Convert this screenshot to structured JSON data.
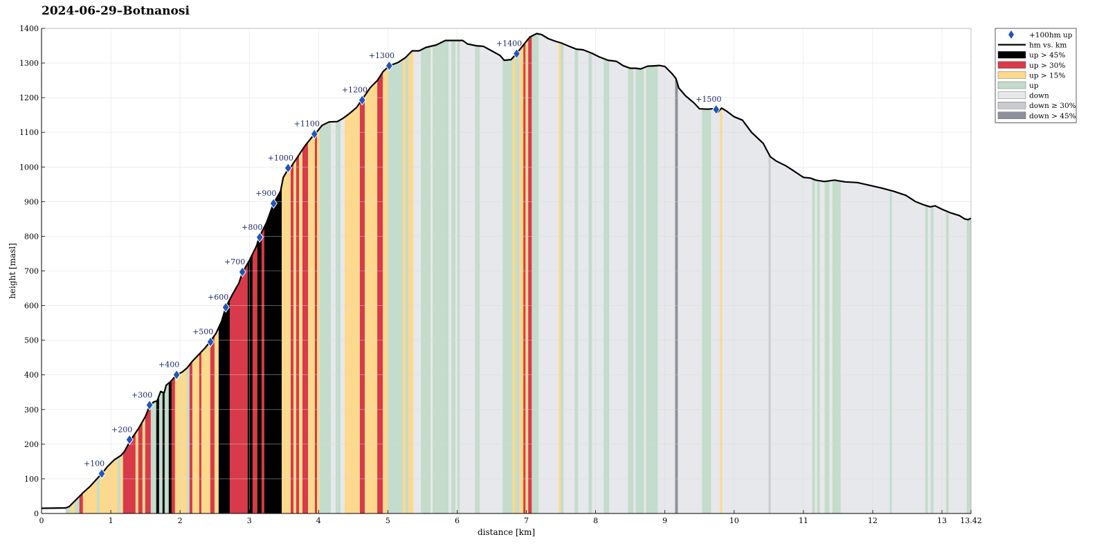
{
  "title": "2024-06-29–Botnanosi",
  "chart_data": {
    "type": "area",
    "title": "2024-06-29–Botnanosi",
    "xlabel": "distance [km]",
    "ylabel": "height [masl]",
    "xlim": [
      0,
      13.42
    ],
    "ylim": [
      0,
      1400
    ],
    "x_ticks": [
      "0",
      "1",
      "2",
      "3",
      "4",
      "5",
      "6",
      "7",
      "8",
      "9",
      "10",
      "11",
      "12",
      "13",
      "13.42"
    ],
    "y_ticks": [
      "0",
      "100",
      "200",
      "300",
      "400",
      "500",
      "600",
      "700",
      "800",
      "900",
      "1000",
      "1100",
      "1200",
      "1300",
      "1400"
    ],
    "grid": true,
    "legend_position": "outside-right-top",
    "colors": {
      "up_gt_45": "#000000",
      "up_gt_30": "#d73a4a",
      "up_gt_15": "#fcd98c",
      "up": "#c4dccb",
      "down": "#e7e8eb",
      "down_ge_30": "#c9cbd0",
      "down_gt_45": "#8e919c",
      "marker": "#1f56b8",
      "profile_line": "#000000"
    },
    "legend": [
      {
        "key": "marker",
        "label": "+100hm up",
        "kind": "marker"
      },
      {
        "key": "profile_line",
        "label": "hm vs. km",
        "kind": "line"
      },
      {
        "key": "up_gt_45",
        "label": "up > 45%",
        "kind": "box"
      },
      {
        "key": "up_gt_30",
        "label": "up > 30%",
        "kind": "box"
      },
      {
        "key": "up_gt_15",
        "label": "up > 15%",
        "kind": "box"
      },
      {
        "key": "up",
        "label": "up",
        "kind": "box"
      },
      {
        "key": "down",
        "label": "down",
        "kind": "box"
      },
      {
        "key": "down_ge_30",
        "label": "down ≥ 30%",
        "kind": "box"
      },
      {
        "key": "down_gt_45",
        "label": "down > 45%",
        "kind": "box"
      }
    ],
    "profile": [
      [
        0,
        15
      ],
      [
        0.35,
        16
      ],
      [
        0.4,
        20
      ],
      [
        0.5,
        40
      ],
      [
        0.6,
        60
      ],
      [
        0.7,
        78
      ],
      [
        0.8,
        100
      ],
      [
        0.87,
        115
      ],
      [
        0.95,
        135
      ],
      [
        1.05,
        155
      ],
      [
        1.15,
        168
      ],
      [
        1.2,
        180
      ],
      [
        1.28,
        210
      ],
      [
        1.4,
        245
      ],
      [
        1.5,
        280
      ],
      [
        1.56,
        310
      ],
      [
        1.62,
        322
      ],
      [
        1.67,
        325
      ],
      [
        1.72,
        352
      ],
      [
        1.77,
        348
      ],
      [
        1.8,
        370
      ],
      [
        1.86,
        380
      ],
      [
        1.95,
        400
      ],
      [
        2.03,
        408
      ],
      [
        2.1,
        420
      ],
      [
        2.18,
        440
      ],
      [
        2.3,
        465
      ],
      [
        2.37,
        480
      ],
      [
        2.43,
        495
      ],
      [
        2.52,
        520
      ],
      [
        2.6,
        555
      ],
      [
        2.66,
        595
      ],
      [
        2.75,
        630
      ],
      [
        2.85,
        665
      ],
      [
        2.9,
        695
      ],
      [
        3.0,
        730
      ],
      [
        3.1,
        770
      ],
      [
        3.15,
        800
      ],
      [
        3.25,
        840
      ],
      [
        3.35,
        895
      ],
      [
        3.45,
        930
      ],
      [
        3.49,
        970
      ],
      [
        3.55,
        990
      ],
      [
        3.6,
        1000
      ],
      [
        3.7,
        1030
      ],
      [
        3.8,
        1060
      ],
      [
        3.9,
        1085
      ],
      [
        3.95,
        1095
      ],
      [
        4.05,
        1120
      ],
      [
        4.15,
        1130
      ],
      [
        4.27,
        1131
      ],
      [
        4.35,
        1140
      ],
      [
        4.45,
        1155
      ],
      [
        4.55,
        1172
      ],
      [
        4.63,
        1195
      ],
      [
        4.75,
        1230
      ],
      [
        4.85,
        1250
      ],
      [
        4.93,
        1275
      ],
      [
        5.02,
        1292
      ],
      [
        5.15,
        1302
      ],
      [
        5.25,
        1315
      ],
      [
        5.35,
        1335
      ],
      [
        5.45,
        1335
      ],
      [
        5.55,
        1345
      ],
      [
        5.7,
        1352
      ],
      [
        5.83,
        1365
      ],
      [
        6.08,
        1365
      ],
      [
        6.15,
        1355
      ],
      [
        6.27,
        1350
      ],
      [
        6.38,
        1348
      ],
      [
        6.5,
        1335
      ],
      [
        6.62,
        1322
      ],
      [
        6.68,
        1308
      ],
      [
        6.78,
        1310
      ],
      [
        6.86,
        1328
      ],
      [
        6.93,
        1345
      ],
      [
        7.05,
        1375
      ],
      [
        7.15,
        1385
      ],
      [
        7.22,
        1382
      ],
      [
        7.32,
        1370
      ],
      [
        7.43,
        1362
      ],
      [
        7.5,
        1358
      ],
      [
        7.62,
        1348
      ],
      [
        7.72,
        1340
      ],
      [
        7.82,
        1338
      ],
      [
        7.95,
        1328
      ],
      [
        8.05,
        1318
      ],
      [
        8.18,
        1308
      ],
      [
        8.3,
        1305
      ],
      [
        8.4,
        1292
      ],
      [
        8.5,
        1285
      ],
      [
        8.58,
        1285
      ],
      [
        8.65,
        1283
      ],
      [
        8.75,
        1291
      ],
      [
        8.85,
        1292
      ],
      [
        8.92,
        1293
      ],
      [
        9.0,
        1290
      ],
      [
        9.1,
        1270
      ],
      [
        9.16,
        1255
      ],
      [
        9.2,
        1228
      ],
      [
        9.3,
        1205
      ],
      [
        9.42,
        1185
      ],
      [
        9.5,
        1168
      ],
      [
        9.62,
        1167
      ],
      [
        9.7,
        1168
      ],
      [
        9.76,
        1158
      ],
      [
        9.82,
        1170
      ],
      [
        9.9,
        1160
      ],
      [
        10.0,
        1145
      ],
      [
        10.12,
        1135
      ],
      [
        10.25,
        1100
      ],
      [
        10.42,
        1068
      ],
      [
        10.52,
        1030
      ],
      [
        10.6,
        1018
      ],
      [
        10.75,
        1003
      ],
      [
        10.85,
        990
      ],
      [
        11.0,
        970
      ],
      [
        11.1,
        968
      ],
      [
        11.18,
        962
      ],
      [
        11.3,
        958
      ],
      [
        11.45,
        962
      ],
      [
        11.6,
        957
      ],
      [
        11.78,
        955
      ],
      [
        12.0,
        945
      ],
      [
        12.15,
        938
      ],
      [
        12.3,
        930
      ],
      [
        12.48,
        918
      ],
      [
        12.62,
        900
      ],
      [
        12.72,
        892
      ],
      [
        12.83,
        885
      ],
      [
        12.9,
        888
      ],
      [
        13.0,
        878
      ],
      [
        13.12,
        868
      ],
      [
        13.25,
        860
      ],
      [
        13.33,
        850
      ],
      [
        13.38,
        848
      ],
      [
        13.42,
        852
      ]
    ],
    "segments": [
      {
        "from": 0.35,
        "to": 0.42,
        "cat": "up"
      },
      {
        "from": 0.42,
        "to": 0.48,
        "cat": "up_gt_15"
      },
      {
        "from": 0.48,
        "to": 0.55,
        "cat": "up"
      },
      {
        "from": 0.55,
        "to": 0.6,
        "cat": "up_gt_30"
      },
      {
        "from": 0.6,
        "to": 0.8,
        "cat": "up_gt_15"
      },
      {
        "from": 0.8,
        "to": 0.84,
        "cat": "up"
      },
      {
        "from": 0.84,
        "to": 1.1,
        "cat": "up_gt_15"
      },
      {
        "from": 1.1,
        "to": 1.14,
        "cat": "up"
      },
      {
        "from": 1.14,
        "to": 1.18,
        "cat": "up_gt_15"
      },
      {
        "from": 1.18,
        "to": 1.36,
        "cat": "up_gt_30"
      },
      {
        "from": 1.36,
        "to": 1.4,
        "cat": "up_gt_15"
      },
      {
        "from": 1.4,
        "to": 1.46,
        "cat": "up_gt_30"
      },
      {
        "from": 1.46,
        "to": 1.5,
        "cat": "up_gt_15"
      },
      {
        "from": 1.5,
        "to": 1.58,
        "cat": "up_gt_30"
      },
      {
        "from": 1.58,
        "to": 1.66,
        "cat": "up"
      },
      {
        "from": 1.66,
        "to": 1.7,
        "cat": "up_gt_45"
      },
      {
        "from": 1.7,
        "to": 1.75,
        "cat": "up"
      },
      {
        "from": 1.75,
        "to": 1.78,
        "cat": "up_gt_45"
      },
      {
        "from": 1.78,
        "to": 1.84,
        "cat": "up"
      },
      {
        "from": 1.84,
        "to": 1.88,
        "cat": "up_gt_45"
      },
      {
        "from": 1.88,
        "to": 1.93,
        "cat": "up_gt_30"
      },
      {
        "from": 1.93,
        "to": 2.1,
        "cat": "up_gt_15"
      },
      {
        "from": 2.1,
        "to": 2.14,
        "cat": "up"
      },
      {
        "from": 2.14,
        "to": 2.18,
        "cat": "up_gt_30"
      },
      {
        "from": 2.18,
        "to": 2.28,
        "cat": "up_gt_15"
      },
      {
        "from": 2.28,
        "to": 2.31,
        "cat": "up_gt_30"
      },
      {
        "from": 2.31,
        "to": 2.44,
        "cat": "up_gt_15"
      },
      {
        "from": 2.44,
        "to": 2.5,
        "cat": "up_gt_30"
      },
      {
        "from": 2.5,
        "to": 2.56,
        "cat": "up_gt_15"
      },
      {
        "from": 2.56,
        "to": 2.72,
        "cat": "up_gt_45"
      },
      {
        "from": 2.72,
        "to": 2.98,
        "cat": "up_gt_30"
      },
      {
        "from": 2.98,
        "to": 3.05,
        "cat": "up_gt_45"
      },
      {
        "from": 3.05,
        "to": 3.12,
        "cat": "up_gt_30"
      },
      {
        "from": 3.12,
        "to": 3.18,
        "cat": "up_gt_45"
      },
      {
        "from": 3.18,
        "to": 3.22,
        "cat": "up_gt_30"
      },
      {
        "from": 3.22,
        "to": 3.47,
        "cat": "up_gt_45"
      },
      {
        "from": 3.47,
        "to": 3.6,
        "cat": "up_gt_15"
      },
      {
        "from": 3.6,
        "to": 3.64,
        "cat": "up_gt_30"
      },
      {
        "from": 3.64,
        "to": 3.68,
        "cat": "up_gt_15"
      },
      {
        "from": 3.68,
        "to": 3.72,
        "cat": "up_gt_30"
      },
      {
        "from": 3.72,
        "to": 3.77,
        "cat": "up_gt_15"
      },
      {
        "from": 3.77,
        "to": 3.85,
        "cat": "up_gt_30"
      },
      {
        "from": 3.85,
        "to": 3.95,
        "cat": "up_gt_15"
      },
      {
        "from": 3.95,
        "to": 3.98,
        "cat": "up_gt_30"
      },
      {
        "from": 3.98,
        "to": 4.02,
        "cat": "up_gt_15"
      },
      {
        "from": 4.02,
        "to": 4.18,
        "cat": "up"
      },
      {
        "from": 4.18,
        "to": 4.25,
        "cat": "down"
      },
      {
        "from": 4.25,
        "to": 4.32,
        "cat": "up"
      },
      {
        "from": 4.32,
        "to": 4.38,
        "cat": "down"
      },
      {
        "from": 4.38,
        "to": 4.45,
        "cat": "up_gt_15"
      },
      {
        "from": 4.45,
        "to": 4.6,
        "cat": "up_gt_15"
      },
      {
        "from": 4.6,
        "to": 4.67,
        "cat": "up_gt_30"
      },
      {
        "from": 4.67,
        "to": 4.85,
        "cat": "up_gt_15"
      },
      {
        "from": 4.85,
        "to": 4.93,
        "cat": "up_gt_30"
      },
      {
        "from": 4.93,
        "to": 5.0,
        "cat": "up_gt_15"
      },
      {
        "from": 5.0,
        "to": 5.22,
        "cat": "up"
      },
      {
        "from": 5.22,
        "to": 5.26,
        "cat": "up_gt_15"
      },
      {
        "from": 5.26,
        "to": 5.3,
        "cat": "up"
      },
      {
        "from": 5.3,
        "to": 5.37,
        "cat": "up_gt_15"
      },
      {
        "from": 5.37,
        "to": 5.48,
        "cat": "down"
      },
      {
        "from": 5.48,
        "to": 5.62,
        "cat": "up"
      },
      {
        "from": 5.62,
        "to": 5.65,
        "cat": "down"
      },
      {
        "from": 5.65,
        "to": 5.88,
        "cat": "up"
      },
      {
        "from": 5.88,
        "to": 5.92,
        "cat": "down"
      },
      {
        "from": 5.92,
        "to": 5.98,
        "cat": "up"
      },
      {
        "from": 5.98,
        "to": 6.01,
        "cat": "down"
      },
      {
        "from": 6.01,
        "to": 6.04,
        "cat": "up"
      },
      {
        "from": 6.04,
        "to": 6.26,
        "cat": "down"
      },
      {
        "from": 6.26,
        "to": 6.33,
        "cat": "up"
      },
      {
        "from": 6.33,
        "to": 6.66,
        "cat": "down"
      },
      {
        "from": 6.66,
        "to": 6.8,
        "cat": "up"
      },
      {
        "from": 6.8,
        "to": 6.84,
        "cat": "up_gt_15"
      },
      {
        "from": 6.84,
        "to": 6.9,
        "cat": "up"
      },
      {
        "from": 6.9,
        "to": 6.96,
        "cat": "up_gt_15"
      },
      {
        "from": 6.96,
        "to": 6.99,
        "cat": "up_gt_30"
      },
      {
        "from": 6.99,
        "to": 7.03,
        "cat": "up_gt_15"
      },
      {
        "from": 7.03,
        "to": 7.08,
        "cat": "up_gt_30"
      },
      {
        "from": 7.08,
        "to": 7.18,
        "cat": "up"
      },
      {
        "from": 7.18,
        "to": 7.47,
        "cat": "down"
      },
      {
        "from": 7.47,
        "to": 7.5,
        "cat": "up_gt_15"
      },
      {
        "from": 7.5,
        "to": 7.54,
        "cat": "up"
      },
      {
        "from": 7.54,
        "to": 7.7,
        "cat": "down"
      },
      {
        "from": 7.7,
        "to": 7.75,
        "cat": "up"
      },
      {
        "from": 7.75,
        "to": 7.9,
        "cat": "down"
      },
      {
        "from": 7.9,
        "to": 7.95,
        "cat": "up"
      },
      {
        "from": 7.95,
        "to": 8.12,
        "cat": "down"
      },
      {
        "from": 8.12,
        "to": 8.2,
        "cat": "up"
      },
      {
        "from": 8.2,
        "to": 8.47,
        "cat": "down"
      },
      {
        "from": 8.47,
        "to": 8.55,
        "cat": "up"
      },
      {
        "from": 8.55,
        "to": 8.58,
        "cat": "down"
      },
      {
        "from": 8.58,
        "to": 8.7,
        "cat": "up"
      },
      {
        "from": 8.7,
        "to": 8.73,
        "cat": "down"
      },
      {
        "from": 8.73,
        "to": 8.9,
        "cat": "up"
      },
      {
        "from": 8.9,
        "to": 9.15,
        "cat": "down"
      },
      {
        "from": 9.15,
        "to": 9.19,
        "cat": "down_gt_45"
      },
      {
        "from": 9.19,
        "to": 9.54,
        "cat": "down"
      },
      {
        "from": 9.54,
        "to": 9.67,
        "cat": "up"
      },
      {
        "from": 9.67,
        "to": 9.8,
        "cat": "down"
      },
      {
        "from": 9.8,
        "to": 9.83,
        "cat": "up_gt_15"
      },
      {
        "from": 9.83,
        "to": 10.5,
        "cat": "down"
      },
      {
        "from": 10.5,
        "to": 10.53,
        "cat": "down_ge_30"
      },
      {
        "from": 10.53,
        "to": 11.13,
        "cat": "down"
      },
      {
        "from": 11.13,
        "to": 11.17,
        "cat": "up"
      },
      {
        "from": 11.17,
        "to": 11.2,
        "cat": "down"
      },
      {
        "from": 11.2,
        "to": 11.24,
        "cat": "up"
      },
      {
        "from": 11.24,
        "to": 11.31,
        "cat": "down"
      },
      {
        "from": 11.31,
        "to": 11.38,
        "cat": "up"
      },
      {
        "from": 11.38,
        "to": 11.42,
        "cat": "down"
      },
      {
        "from": 11.42,
        "to": 11.54,
        "cat": "up"
      },
      {
        "from": 11.54,
        "to": 12.25,
        "cat": "down"
      },
      {
        "from": 12.25,
        "to": 12.28,
        "cat": "up"
      },
      {
        "from": 12.28,
        "to": 12.76,
        "cat": "down"
      },
      {
        "from": 12.76,
        "to": 12.8,
        "cat": "up"
      },
      {
        "from": 12.8,
        "to": 12.84,
        "cat": "down"
      },
      {
        "from": 12.84,
        "to": 12.88,
        "cat": "up"
      },
      {
        "from": 12.88,
        "to": 13.06,
        "cat": "down"
      },
      {
        "from": 13.06,
        "to": 13.1,
        "cat": "up"
      },
      {
        "from": 13.1,
        "to": 13.36,
        "cat": "down"
      },
      {
        "from": 13.36,
        "to": 13.42,
        "cat": "up"
      }
    ],
    "markers": [
      {
        "x": 0.87,
        "y": 115,
        "label": "+100"
      },
      {
        "x": 1.27,
        "y": 213,
        "label": "+200"
      },
      {
        "x": 1.56,
        "y": 313,
        "label": "+300"
      },
      {
        "x": 1.95,
        "y": 400,
        "label": "+400"
      },
      {
        "x": 2.44,
        "y": 495,
        "label": "+500"
      },
      {
        "x": 2.66,
        "y": 595,
        "label": "+600"
      },
      {
        "x": 2.9,
        "y": 697,
        "label": "+700"
      },
      {
        "x": 3.15,
        "y": 797,
        "label": "+800"
      },
      {
        "x": 3.35,
        "y": 895,
        "label": "+900"
      },
      {
        "x": 3.56,
        "y": 997,
        "label": "+1000"
      },
      {
        "x": 3.94,
        "y": 1095,
        "label": "+1100"
      },
      {
        "x": 4.63,
        "y": 1193,
        "label": "+1200"
      },
      {
        "x": 5.02,
        "y": 1292,
        "label": "+1300"
      },
      {
        "x": 6.86,
        "y": 1327,
        "label": "+1400"
      },
      {
        "x": 9.74,
        "y": 1166,
        "label": "+1500"
      }
    ]
  }
}
